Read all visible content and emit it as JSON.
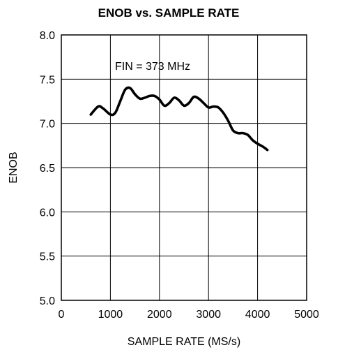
{
  "chart_data": {
    "type": "line",
    "title": "ENOB vs. SAMPLE RATE",
    "xlabel": "SAMPLE RATE (MS/s)",
    "ylabel": "ENOB",
    "xlim": [
      0,
      5000
    ],
    "ylim": [
      5.0,
      8.0
    ],
    "x_ticks": [
      "0",
      "1000",
      "2000",
      "3000",
      "4000",
      "5000"
    ],
    "y_ticks": [
      "5.0",
      "5.5",
      "6.0",
      "6.5",
      "7.0",
      "7.5",
      "8.0"
    ],
    "grid": true,
    "annotation": "FIN = 373 MHz",
    "series": [
      {
        "x": [
          600,
          750,
          850,
          1000,
          1100,
          1200,
          1300,
          1400,
          1500,
          1600,
          1700,
          1800,
          1900,
          2000,
          2100,
          2200,
          2300,
          2400,
          2500,
          2600,
          2700,
          2800,
          2900,
          3000,
          3100,
          3200,
          3300,
          3400,
          3500,
          3600,
          3700,
          3800,
          3900,
          4000,
          4100,
          4200
        ],
        "y": [
          7.1,
          7.19,
          7.17,
          7.1,
          7.12,
          7.25,
          7.38,
          7.4,
          7.33,
          7.28,
          7.29,
          7.31,
          7.31,
          7.27,
          7.2,
          7.23,
          7.29,
          7.26,
          7.2,
          7.23,
          7.3,
          7.28,
          7.23,
          7.18,
          7.19,
          7.18,
          7.12,
          7.03,
          6.92,
          6.89,
          6.89,
          6.87,
          6.81,
          6.77,
          6.74,
          6.7
        ],
        "stroke": "#000000"
      }
    ]
  }
}
